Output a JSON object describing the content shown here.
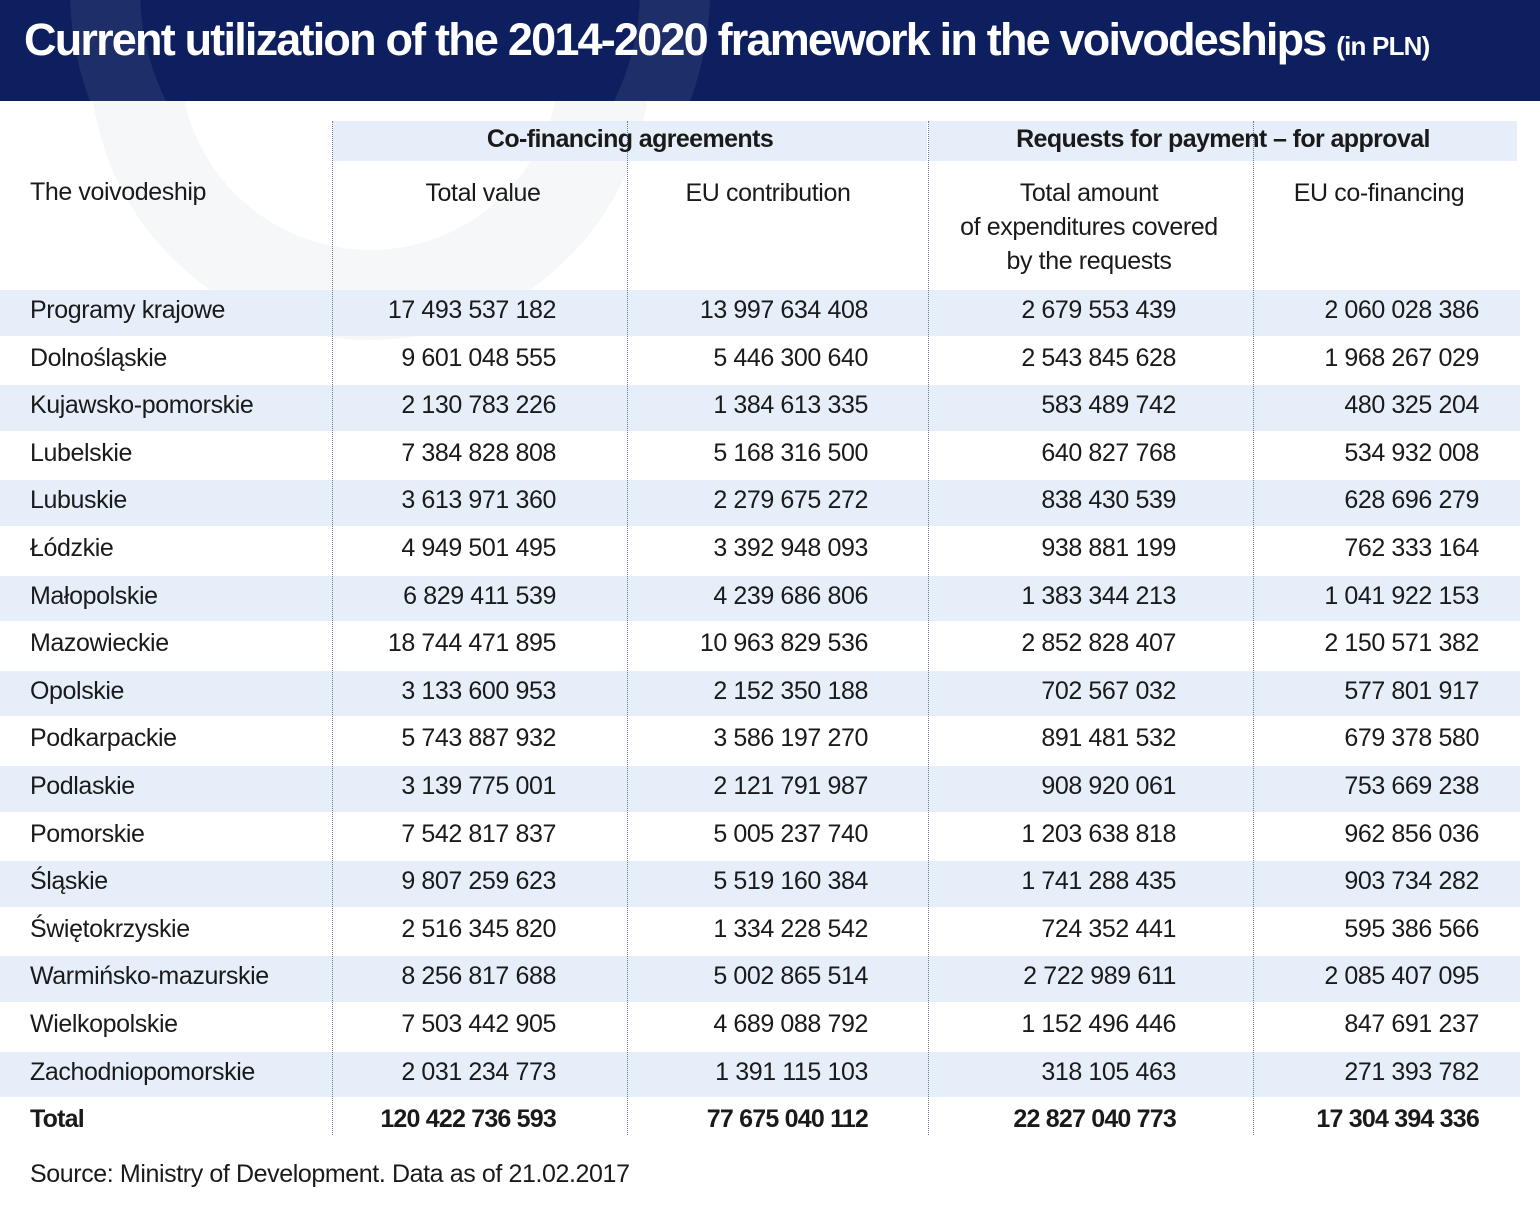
{
  "title": "Current utilization of the 2014-2020 framework in the voivodeships",
  "title_unit": "(in PLN)",
  "colors": {
    "title_bg": "#0d1f5e",
    "band": "#e6eef9"
  },
  "chart_data": {
    "type": "table",
    "column_groups": [
      {
        "label": "Co-financing agreements",
        "span": 2
      },
      {
        "label": "Requests for payment – for approval",
        "span": 2
      }
    ],
    "columns": [
      "The voivodeship",
      "Total value",
      "EU contribution",
      "Total amount of expenditures covered by the requests",
      "EU co-financing"
    ],
    "rows": [
      [
        "Programy krajowe",
        "17 493 537 182",
        "13 997 634 408",
        "2 679 553 439",
        "2 060 028 386"
      ],
      [
        "Dolnośląskie",
        "9 601 048 555",
        "5 446 300 640",
        "2 543 845 628",
        "1 968 267 029"
      ],
      [
        "Kujawsko-pomorskie",
        "2 130 783 226",
        "1 384 613 335",
        "583 489 742",
        "480 325 204"
      ],
      [
        "Lubelskie",
        "7 384 828 808",
        "5 168 316 500",
        "640 827 768",
        "534 932 008"
      ],
      [
        "Lubuskie",
        "3 613 971 360",
        "2 279 675 272",
        "838 430 539",
        "628 696 279"
      ],
      [
        "Łódzkie",
        "4 949 501 495",
        "3 392 948 093",
        "938 881 199",
        "762 333 164"
      ],
      [
        "Małopolskie",
        "6 829 411 539",
        "4 239 686 806",
        "1 383 344 213",
        "1 041 922 153"
      ],
      [
        "Mazowieckie",
        "18 744 471 895",
        "10 963 829 536",
        "2 852 828 407",
        "2 150 571 382"
      ],
      [
        "Opolskie",
        "3 133 600 953",
        "2 152 350 188",
        "702 567 032",
        "577 801 917"
      ],
      [
        "Podkarpackie",
        "5 743 887 932",
        "3 586 197 270",
        "891 481 532",
        "679 378 580"
      ],
      [
        "Podlaskie",
        "3 139 775 001",
        "2 121 791 987",
        "908 920 061",
        "753 669 238"
      ],
      [
        "Pomorskie",
        "7 542 817 837",
        "5 005 237 740",
        "1 203 638 818",
        "962 856 036"
      ],
      [
        "Śląskie",
        "9 807 259 623",
        "5 519 160 384",
        "1 741 288 435",
        "903 734 282"
      ],
      [
        "Świętokrzyskie",
        "2 516 345 820",
        "1 334 228 542",
        "724 352 441",
        "595 386 566"
      ],
      [
        "Warmińsko-mazurskie",
        "8 256 817 688",
        "5 002 865 514",
        "2 722 989 611",
        "2 085 407 095"
      ],
      [
        "Wielkopolskie",
        "7 503 442 905",
        "4 689 088 792",
        "1 152 496 446",
        "847 691 237"
      ],
      [
        "Zachodniopomorskie",
        "2 031 234 773",
        "1 391 115 103",
        "318 105 463",
        "271 393 782"
      ]
    ],
    "total_row": [
      "Total",
      "120 422 736 593",
      "77 675 040 112",
      "22 827 040 773",
      "17 304 394 336"
    ]
  },
  "header_lines": {
    "col3": [
      "Total amount",
      "of expenditures covered",
      "by the requests"
    ]
  },
  "source": "Source: Ministry of Development. Data as of 21.02.2017"
}
